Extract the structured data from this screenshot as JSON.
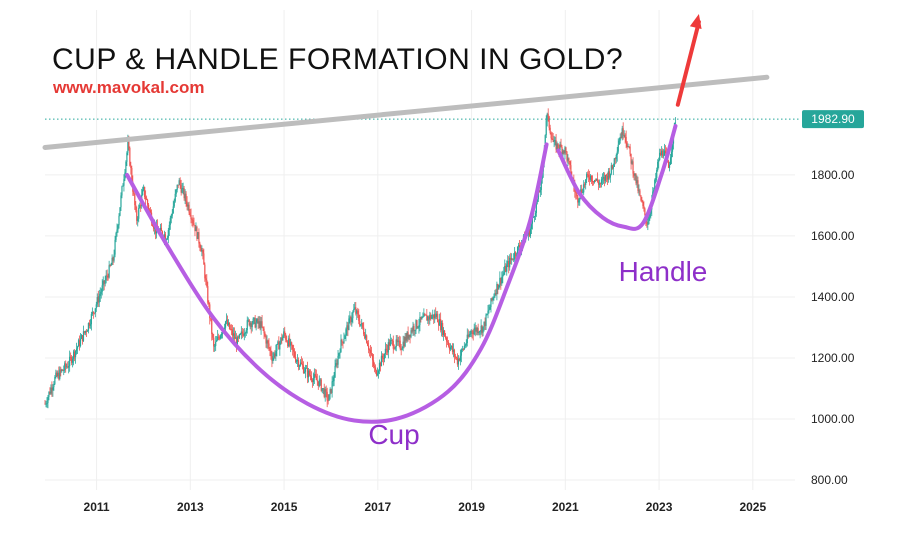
{
  "chart_data": {
    "type": "candlestick",
    "title": "CUP & HANDLE FORMATION IN GOLD?",
    "subtitle": "www.mavokal.com",
    "xlabel": "",
    "ylabel": "",
    "x_ticks": [
      "2011",
      "2013",
      "2015",
      "2017",
      "2019",
      "2021",
      "2023",
      "2025"
    ],
    "y_ticks": [
      "800.00",
      "1000.00",
      "1200.00",
      "1400.00",
      "1600.00",
      "1800.00"
    ],
    "xlim": [
      2009.9,
      2025.9
    ],
    "ylim": [
      800,
      1980
    ],
    "grid": true,
    "last_price": 1982.9,
    "last_price_label": "1982.90",
    "annotations": [
      "Cup",
      "Handle"
    ],
    "price_path": [
      {
        "t": 2009.9,
        "p": 1050
      },
      {
        "t": 2010.1,
        "p": 1130
      },
      {
        "t": 2010.4,
        "p": 1180
      },
      {
        "t": 2010.8,
        "p": 1300
      },
      {
        "t": 2011.1,
        "p": 1420
      },
      {
        "t": 2011.35,
        "p": 1520
      },
      {
        "t": 2011.5,
        "p": 1700
      },
      {
        "t": 2011.67,
        "p": 1900
      },
      {
        "t": 2011.85,
        "p": 1650
      },
      {
        "t": 2012.0,
        "p": 1750
      },
      {
        "t": 2012.25,
        "p": 1620
      },
      {
        "t": 2012.5,
        "p": 1600
      },
      {
        "t": 2012.75,
        "p": 1780
      },
      {
        "t": 2013.0,
        "p": 1680
      },
      {
        "t": 2013.25,
        "p": 1550
      },
      {
        "t": 2013.5,
        "p": 1230
      },
      {
        "t": 2013.75,
        "p": 1320
      },
      {
        "t": 2014.0,
        "p": 1250
      },
      {
        "t": 2014.25,
        "p": 1320
      },
      {
        "t": 2014.5,
        "p": 1310
      },
      {
        "t": 2014.75,
        "p": 1200
      },
      {
        "t": 2015.0,
        "p": 1280
      },
      {
        "t": 2015.25,
        "p": 1200
      },
      {
        "t": 2015.5,
        "p": 1150
      },
      {
        "t": 2015.75,
        "p": 1120
      },
      {
        "t": 2015.95,
        "p": 1060
      },
      {
        "t": 2016.2,
        "p": 1240
      },
      {
        "t": 2016.5,
        "p": 1360
      },
      {
        "t": 2016.75,
        "p": 1270
      },
      {
        "t": 2016.95,
        "p": 1150
      },
      {
        "t": 2017.25,
        "p": 1250
      },
      {
        "t": 2017.5,
        "p": 1240
      },
      {
        "t": 2017.75,
        "p": 1300
      },
      {
        "t": 2018.0,
        "p": 1330
      },
      {
        "t": 2018.25,
        "p": 1340
      },
      {
        "t": 2018.5,
        "p": 1250
      },
      {
        "t": 2018.7,
        "p": 1190
      },
      {
        "t": 2019.0,
        "p": 1290
      },
      {
        "t": 2019.25,
        "p": 1300
      },
      {
        "t": 2019.5,
        "p": 1420
      },
      {
        "t": 2019.75,
        "p": 1500
      },
      {
        "t": 2020.0,
        "p": 1560
      },
      {
        "t": 2020.25,
        "p": 1620
      },
      {
        "t": 2020.5,
        "p": 1780
      },
      {
        "t": 2020.6,
        "p": 2000
      },
      {
        "t": 2020.75,
        "p": 1900
      },
      {
        "t": 2021.0,
        "p": 1880
      },
      {
        "t": 2021.25,
        "p": 1720
      },
      {
        "t": 2021.5,
        "p": 1800
      },
      {
        "t": 2021.75,
        "p": 1770
      },
      {
        "t": 2022.0,
        "p": 1820
      },
      {
        "t": 2022.15,
        "p": 1920
      },
      {
        "t": 2022.25,
        "p": 1950
      },
      {
        "t": 2022.4,
        "p": 1850
      },
      {
        "t": 2022.6,
        "p": 1720
      },
      {
        "t": 2022.75,
        "p": 1640
      },
      {
        "t": 2022.9,
        "p": 1760
      },
      {
        "t": 2023.0,
        "p": 1860
      },
      {
        "t": 2023.1,
        "p": 1880
      },
      {
        "t": 2023.2,
        "p": 1820
      },
      {
        "t": 2023.35,
        "p": 1982.9
      }
    ],
    "resistance_line": [
      {
        "t": 2009.9,
        "p": 1890
      },
      {
        "t": 2025.3,
        "p": 2120
      }
    ],
    "cup_curve": [
      {
        "t": 2011.65,
        "p": 1800
      },
      {
        "t": 2012.5,
        "p": 1570
      },
      {
        "t": 2013.5,
        "p": 1330
      },
      {
        "t": 2014.5,
        "p": 1160
      },
      {
        "t": 2015.5,
        "p": 1050
      },
      {
        "t": 2016.5,
        "p": 995
      },
      {
        "t": 2017.5,
        "p": 1005
      },
      {
        "t": 2018.5,
        "p": 1090
      },
      {
        "t": 2019.2,
        "p": 1230
      },
      {
        "t": 2019.75,
        "p": 1430
      },
      {
        "t": 2020.25,
        "p": 1650
      },
      {
        "t": 2020.6,
        "p": 1900
      }
    ],
    "handle_curve": [
      {
        "t": 2020.85,
        "p": 1880
      },
      {
        "t": 2021.3,
        "p": 1740
      },
      {
        "t": 2021.8,
        "p": 1660
      },
      {
        "t": 2022.25,
        "p": 1630
      },
      {
        "t": 2022.65,
        "p": 1640
      },
      {
        "t": 2023.05,
        "p": 1800
      },
      {
        "t": 2023.35,
        "p": 1960
      }
    ],
    "breakout_arrow": [
      {
        "t": 2023.4,
        "p": 2030
      },
      {
        "t": 2023.85,
        "p": 2500
      }
    ],
    "colors": {
      "up": "#26a69a",
      "down": "#ef5350",
      "cup": "#b65ee3",
      "annotation": "#8e2fc9",
      "resistance": "#bdbdbd",
      "arrow": "#ee3a3a",
      "price_tag": "#26a69a",
      "subtitle": "#e53935"
    }
  }
}
